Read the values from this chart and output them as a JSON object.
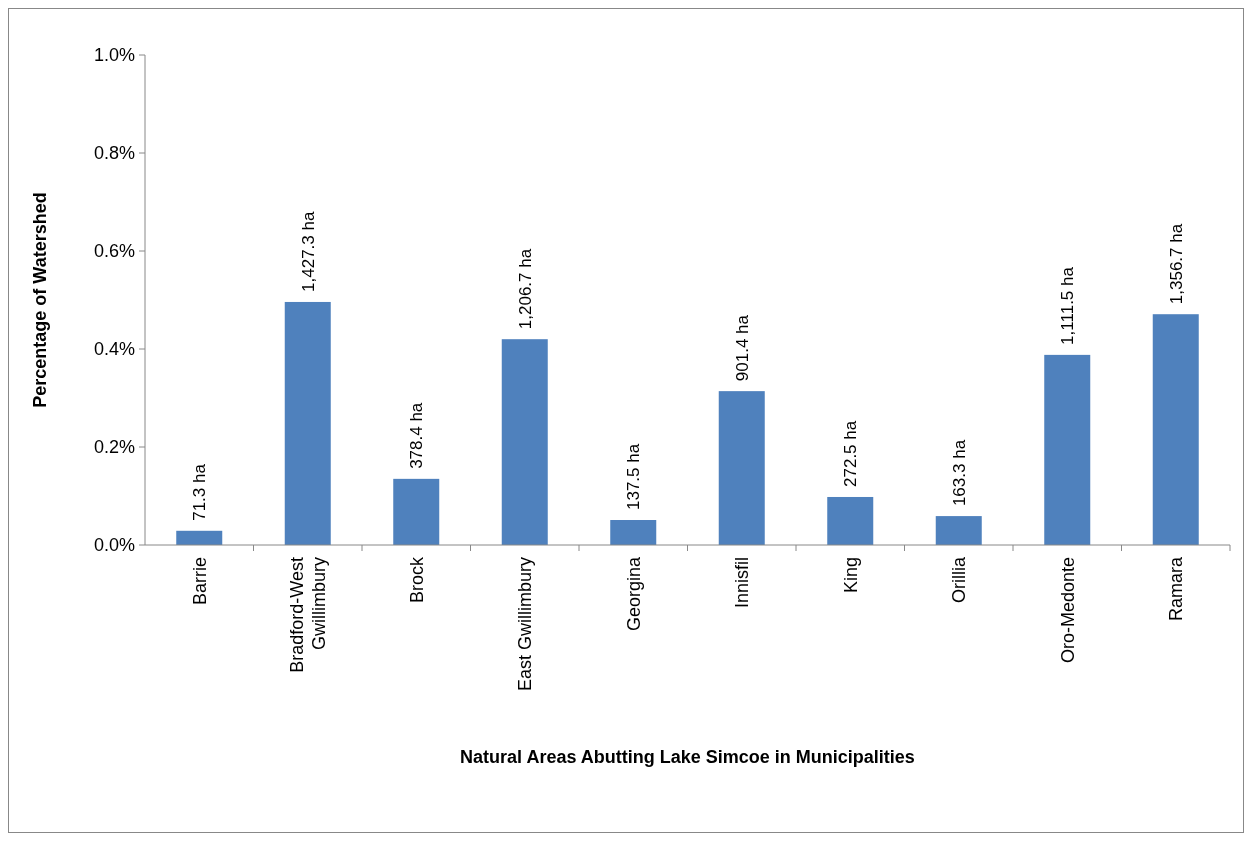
{
  "chart_data": {
    "type": "bar",
    "xlabel": "Natural Areas Abutting Lake Simcoe in Municipalities",
    "ylabel": "Percentage of Watershed",
    "categories": [
      "Barrie",
      "Bradford-West Gwillimbury",
      "Brock",
      "East Gwillimbury",
      "Georgina",
      "Innisfil",
      "King",
      "Orillia",
      "Oro-Medonte",
      "Ramara"
    ],
    "values": [
      0.029,
      0.496,
      0.135,
      0.42,
      0.051,
      0.314,
      0.098,
      0.059,
      0.388,
      0.471
    ],
    "annotations": [
      {
        "text": "71.3 ha",
        "x": "Barrie",
        "y": 0.029
      },
      {
        "text": "1,427.3 ha",
        "x": "Bradford-West Gwillimbury",
        "y": 0.496
      },
      {
        "text": "378.4 ha",
        "x": "Brock",
        "y": 0.135
      },
      {
        "text": "1,206.7 ha",
        "x": "East Gwillimbury",
        "y": 0.42
      },
      {
        "text": "137.5 ha",
        "x": "Georgina",
        "y": 0.051
      },
      {
        "text": "901.4 ha",
        "x": "Innisfil",
        "y": 0.314
      },
      {
        "text": "272.5 ha",
        "x": "King",
        "y": 0.098
      },
      {
        "text": "163.3 ha",
        "x": "Orillia",
        "y": 0.059
      },
      {
        "text": "1,111.5 ha",
        "x": "Oro-Medonte",
        "y": 0.388
      },
      {
        "text": "1,356.7 ha",
        "x": "Ramara",
        "y": 0.471
      }
    ],
    "color": "#4f81bd",
    "ylim": [
      0,
      1
    ],
    "yticks": [
      {
        "value": 0,
        "label": "0.0%"
      },
      {
        "value": 0.2,
        "label": "0.2%"
      },
      {
        "value": 0.4,
        "label": "0.4%"
      },
      {
        "value": 0.6,
        "label": "0.6%"
      },
      {
        "value": 0.8,
        "label": "0.8%"
      },
      {
        "value": 1,
        "label": "1.0%"
      }
    ],
    "grid": false
  }
}
